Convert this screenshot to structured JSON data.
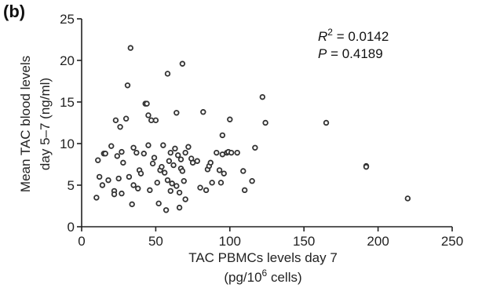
{
  "panel_label": "(b)",
  "chart_data": {
    "type": "scatter",
    "xlabel_line1": "TAC PBMCs levels day 7",
    "xlabel_line2_prefix": "(pg/10",
    "xlabel_line2_sup": "6",
    "xlabel_line2_suffix": " cells)",
    "ylabel_line1": "Mean TAC blood levels",
    "ylabel_line2": "day 5–7 (ng/ml)",
    "xlim": [
      0,
      250
    ],
    "ylim": [
      0,
      25
    ],
    "xticks": [
      "0",
      "50",
      "100",
      "150",
      "200",
      "250"
    ],
    "yticks": [
      "0",
      "5",
      "10",
      "15",
      "20",
      "25"
    ],
    "stats": {
      "r2_prefix": "R",
      "r2_sup": "2",
      "r2_value": " = 0.0142",
      "p_prefix": "P",
      "p_value": " = 0.4189"
    },
    "points": [
      {
        "x": 10,
        "y": 3.5
      },
      {
        "x": 11,
        "y": 8.0
      },
      {
        "x": 12,
        "y": 6.0
      },
      {
        "x": 14,
        "y": 5.0
      },
      {
        "x": 15,
        "y": 8.8
      },
      {
        "x": 16,
        "y": 8.8
      },
      {
        "x": 18,
        "y": 5.6
      },
      {
        "x": 20,
        "y": 9.7
      },
      {
        "x": 22,
        "y": 4.3
      },
      {
        "x": 22,
        "y": 3.9
      },
      {
        "x": 23,
        "y": 12.8
      },
      {
        "x": 24,
        "y": 8.5
      },
      {
        "x": 25,
        "y": 5.8
      },
      {
        "x": 26,
        "y": 12.0
      },
      {
        "x": 27,
        "y": 9.0
      },
      {
        "x": 27,
        "y": 4.0
      },
      {
        "x": 28,
        "y": 7.7
      },
      {
        "x": 30,
        "y": 13.0
      },
      {
        "x": 31,
        "y": 17.0
      },
      {
        "x": 32,
        "y": 6.0
      },
      {
        "x": 33,
        "y": 21.5
      },
      {
        "x": 34,
        "y": 2.7
      },
      {
        "x": 35,
        "y": 9.5
      },
      {
        "x": 35,
        "y": 5.0
      },
      {
        "x": 37,
        "y": 8.9
      },
      {
        "x": 38,
        "y": 4.6
      },
      {
        "x": 39,
        "y": 6.8
      },
      {
        "x": 40,
        "y": 6.4
      },
      {
        "x": 42,
        "y": 8.8
      },
      {
        "x": 43,
        "y": 14.8
      },
      {
        "x": 44,
        "y": 14.8
      },
      {
        "x": 45,
        "y": 9.8
      },
      {
        "x": 45,
        "y": 13.4
      },
      {
        "x": 46,
        "y": 4.4
      },
      {
        "x": 47,
        "y": 12.8
      },
      {
        "x": 48,
        "y": 7.6
      },
      {
        "x": 49,
        "y": 8.3
      },
      {
        "x": 50,
        "y": 12.8
      },
      {
        "x": 51,
        "y": 5.3
      },
      {
        "x": 52,
        "y": 2.8
      },
      {
        "x": 53,
        "y": 6.8
      },
      {
        "x": 54,
        "y": 7.2
      },
      {
        "x": 55,
        "y": 9.8
      },
      {
        "x": 56,
        "y": 6.5
      },
      {
        "x": 57,
        "y": 2.0
      },
      {
        "x": 58,
        "y": 18.4
      },
      {
        "x": 58,
        "y": 5.6
      },
      {
        "x": 59,
        "y": 7.9
      },
      {
        "x": 60,
        "y": 4.3
      },
      {
        "x": 60,
        "y": 8.9
      },
      {
        "x": 61,
        "y": 5.2
      },
      {
        "x": 62,
        "y": 7.4
      },
      {
        "x": 63,
        "y": 9.4
      },
      {
        "x": 64,
        "y": 13.7
      },
      {
        "x": 64,
        "y": 4.9
      },
      {
        "x": 65,
        "y": 8.6
      },
      {
        "x": 66,
        "y": 4.1
      },
      {
        "x": 66,
        "y": 2.3
      },
      {
        "x": 67,
        "y": 8.1
      },
      {
        "x": 67,
        "y": 7.0
      },
      {
        "x": 68,
        "y": 19.6
      },
      {
        "x": 68,
        "y": 6.7
      },
      {
        "x": 69,
        "y": 5.5
      },
      {
        "x": 70,
        "y": 3.3
      },
      {
        "x": 70,
        "y": 8.9
      },
      {
        "x": 72,
        "y": 9.6
      },
      {
        "x": 74,
        "y": 8.2
      },
      {
        "x": 75,
        "y": 7.7
      },
      {
        "x": 78,
        "y": 7.9
      },
      {
        "x": 80,
        "y": 4.7
      },
      {
        "x": 82,
        "y": 13.8
      },
      {
        "x": 84,
        "y": 4.4
      },
      {
        "x": 85,
        "y": 6.9
      },
      {
        "x": 86,
        "y": 7.3
      },
      {
        "x": 87,
        "y": 7.7
      },
      {
        "x": 88,
        "y": 5.3
      },
      {
        "x": 91,
        "y": 8.9
      },
      {
        "x": 93,
        "y": 6.8
      },
      {
        "x": 94,
        "y": 5.3
      },
      {
        "x": 95,
        "y": 8.7
      },
      {
        "x": 95,
        "y": 11.0
      },
      {
        "x": 96,
        "y": 6.4
      },
      {
        "x": 98,
        "y": 8.9
      },
      {
        "x": 99,
        "y": 9.0
      },
      {
        "x": 100,
        "y": 12.9
      },
      {
        "x": 101,
        "y": 8.9
      },
      {
        "x": 105,
        "y": 8.9
      },
      {
        "x": 109,
        "y": 6.7
      },
      {
        "x": 110,
        "y": 4.4
      },
      {
        "x": 115,
        "y": 5.5
      },
      {
        "x": 117,
        "y": 9.5
      },
      {
        "x": 122,
        "y": 15.6
      },
      {
        "x": 124,
        "y": 12.5
      },
      {
        "x": 165,
        "y": 12.5
      },
      {
        "x": 192,
        "y": 7.3
      },
      {
        "x": 192,
        "y": 7.2
      },
      {
        "x": 220,
        "y": 3.4
      }
    ]
  }
}
